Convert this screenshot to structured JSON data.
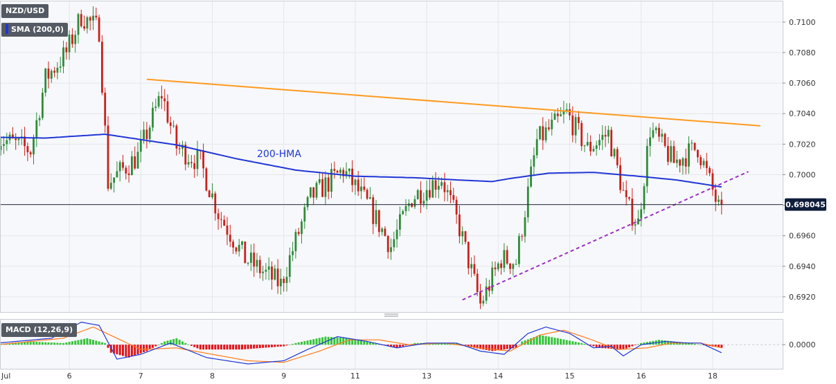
{
  "chart_data": [
    {
      "type": "candlestick",
      "title": "NZD/USD",
      "indicator_label": "SMA (200,0)",
      "series_label": "200-HMA",
      "last_price_label": "0.698045",
      "last_price": 0.698045,
      "ylim": [
        0.691,
        0.7114
      ],
      "y_ticks": [
        "0.7100",
        "0.7080",
        "0.7060",
        "0.7040",
        "0.7020",
        "0.7000",
        "0.6980",
        "0.6960",
        "0.6940",
        "0.6920"
      ],
      "y_tick_values": [
        0.71,
        0.708,
        0.706,
        0.704,
        0.702,
        0.7,
        0.698,
        0.696,
        0.694,
        0.692
      ],
      "x_ticks": [
        "Jul",
        "6",
        "7",
        "8",
        "9",
        "11",
        "13",
        "14",
        "15",
        "16",
        "18"
      ],
      "x_tick_bars": [
        0,
        24,
        48,
        72,
        96,
        120,
        144,
        168,
        192,
        216,
        240
      ],
      "bar_count": 260,
      "grid": true,
      "colors": {
        "up": "#2e8b3a",
        "down": "#c8211b",
        "hma": "#1f35d6",
        "resistance": "#ff9a1f",
        "support": "#9a2fc2"
      },
      "path_points": [
        [
          0,
          0.7025
        ],
        [
          12,
          0.7016
        ],
        [
          17,
          0.7063
        ],
        [
          24,
          0.708
        ],
        [
          29,
          0.7104
        ],
        [
          35,
          0.7095
        ],
        [
          38,
          0.6995
        ],
        [
          48,
          0.7012
        ],
        [
          56,
          0.7053
        ],
        [
          61,
          0.7018
        ],
        [
          69,
          0.7008
        ],
        [
          75,
          0.6975
        ],
        [
          84,
          0.6945
        ],
        [
          96,
          0.6928
        ],
        [
          106,
          0.6985
        ],
        [
          117,
          0.7003
        ],
        [
          126,
          0.6978
        ],
        [
          133,
          0.6953
        ],
        [
          140,
          0.6985
        ],
        [
          150,
          0.6998
        ],
        [
          156,
          0.6965
        ],
        [
          163,
          0.6915
        ],
        [
          170,
          0.6945
        ],
        [
          175,
          0.6943
        ],
        [
          182,
          0.7022
        ],
        [
          192,
          0.704
        ],
        [
          199,
          0.7017
        ],
        [
          206,
          0.7027
        ],
        [
          212,
          0.698
        ],
        [
          216,
          0.6968
        ],
        [
          220,
          0.703
        ],
        [
          228,
          0.7008
        ],
        [
          236,
          0.7018
        ],
        [
          243,
          0.6978
        ]
      ],
      "hma_points": [
        [
          0,
          0.70245
        ],
        [
          16,
          0.7024
        ],
        [
          36,
          0.70265
        ],
        [
          60,
          0.70195
        ],
        [
          80,
          0.70105
        ],
        [
          100,
          0.7003
        ],
        [
          120,
          0.6999
        ],
        [
          140,
          0.6998
        ],
        [
          155,
          0.69965
        ],
        [
          166,
          0.69955
        ],
        [
          172,
          0.69975
        ],
        [
          185,
          0.7001
        ],
        [
          200,
          0.70015
        ],
        [
          215,
          0.6999
        ],
        [
          228,
          0.69965
        ],
        [
          243,
          0.6992
        ]
      ],
      "resistance_line": {
        "from": [
          50,
          0.70625
        ],
        "to": [
          256,
          0.7032
        ]
      },
      "support_line": {
        "from": [
          156,
          0.6918
        ],
        "to": [
          252,
          0.7002
        ]
      }
    },
    {
      "type": "bar",
      "title": "MACD (12,26,9)",
      "y_ticks": [
        "0.0000"
      ],
      "y_tick_values": [
        0.0
      ],
      "ylim": [
        -0.0015,
        0.0016
      ],
      "colors": {
        "hist_up": "#36c33a",
        "hist_down": "#e0141a",
        "macd": "#1f35d6",
        "signal": "#ff7a1a"
      },
      "macd_points": [
        [
          0,
          0.0001
        ],
        [
          18,
          0.0004
        ],
        [
          28,
          0.0014
        ],
        [
          34,
          0.0012
        ],
        [
          40,
          -0.0009
        ],
        [
          48,
          -0.0006
        ],
        [
          58,
          0.0001
        ],
        [
          70,
          -0.0008
        ],
        [
          84,
          -0.0012
        ],
        [
          96,
          -0.001
        ],
        [
          104,
          -0.0003
        ],
        [
          114,
          0.0005
        ],
        [
          124,
          0.0002
        ],
        [
          134,
          -0.0002
        ],
        [
          144,
          0.0001
        ],
        [
          154,
          0.0001
        ],
        [
          162,
          -0.0004
        ],
        [
          170,
          -0.0006
        ],
        [
          178,
          0.0007
        ],
        [
          184,
          0.0011
        ],
        [
          192,
          0.0007
        ],
        [
          200,
          -0.0002
        ],
        [
          206,
          -0.0001
        ],
        [
          210,
          -0.0007
        ],
        [
          216,
          0.0
        ],
        [
          224,
          0.0002
        ],
        [
          232,
          0.0001
        ],
        [
          236,
          0.0001
        ],
        [
          243,
          -0.0005
        ]
      ],
      "signal_points": [
        [
          0,
          0.0
        ],
        [
          22,
          0.0004
        ],
        [
          32,
          0.0011
        ],
        [
          40,
          0.0004
        ],
        [
          48,
          -0.0003
        ],
        [
          60,
          -0.0002
        ],
        [
          72,
          -0.0006
        ],
        [
          84,
          -0.001
        ],
        [
          96,
          -0.0011
        ],
        [
          108,
          -0.0004
        ],
        [
          118,
          0.0003
        ],
        [
          128,
          0.0003
        ],
        [
          138,
          0.0
        ],
        [
          150,
          0.0001
        ],
        [
          162,
          -0.0002
        ],
        [
          172,
          -0.0004
        ],
        [
          182,
          0.0006
        ],
        [
          190,
          0.0009
        ],
        [
          198,
          0.0004
        ],
        [
          208,
          -0.0003
        ],
        [
          218,
          -0.0002
        ],
        [
          226,
          0.0001
        ],
        [
          236,
          0.0001
        ],
        [
          243,
          -0.0002
        ]
      ],
      "hist_points": [
        [
          0,
          0.0
        ],
        [
          10,
          0.0002
        ],
        [
          22,
          0.0001
        ],
        [
          30,
          0.0004
        ],
        [
          36,
          0.0001
        ],
        [
          38,
          -0.0005
        ],
        [
          44,
          -0.0008
        ],
        [
          50,
          -0.0004
        ],
        [
          56,
          0.0002
        ],
        [
          60,
          0.0004
        ],
        [
          64,
          0.0
        ],
        [
          68,
          -0.0003
        ],
        [
          82,
          -0.0003
        ],
        [
          96,
          -0.0001
        ],
        [
          100,
          0.0001
        ],
        [
          110,
          0.0005
        ],
        [
          118,
          0.0004
        ],
        [
          126,
          0.0001
        ],
        [
          134,
          -0.0002
        ],
        [
          140,
          0.0001
        ],
        [
          154,
          0.0001
        ],
        [
          160,
          -0.0002
        ],
        [
          166,
          -0.0004
        ],
        [
          174,
          -0.0002
        ],
        [
          176,
          0.0002
        ],
        [
          182,
          0.0006
        ],
        [
          188,
          0.0004
        ],
        [
          196,
          0.0001
        ],
        [
          202,
          -0.0002
        ],
        [
          210,
          -0.0003
        ],
        [
          216,
          0.0001
        ],
        [
          222,
          0.0003
        ],
        [
          232,
          0.0001
        ],
        [
          236,
          0.0
        ],
        [
          243,
          -0.0002
        ]
      ]
    }
  ]
}
